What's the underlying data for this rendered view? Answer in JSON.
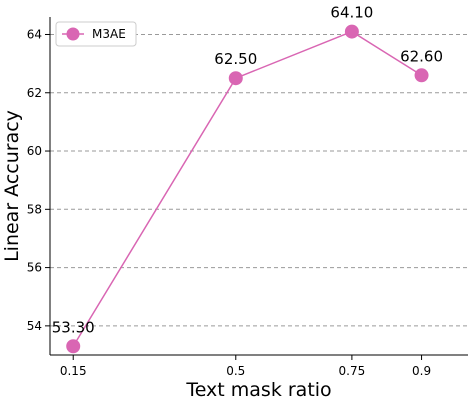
{
  "chart_data": {
    "type": "line",
    "x_tick_labels": [
      "0.15",
      "0.5",
      "0.75",
      "0.9"
    ],
    "x": [
      0.15,
      0.5,
      0.75,
      0.9
    ],
    "xlim": [
      0.1,
      1.0
    ],
    "ylim": [
      53.0,
      64.6
    ],
    "y_ticks": [
      54,
      56,
      58,
      60,
      62,
      64
    ],
    "y_tick_labels": [
      "54",
      "56",
      "58",
      "60",
      "62",
      "64"
    ],
    "xlabel": "Text mask ratio",
    "ylabel": "Linear Accuracy",
    "grid": "horizontal dashed",
    "legend_position": "top-left",
    "series": [
      {
        "name": "M3AE",
        "color": "#d966b3",
        "values": [
          53.3,
          62.5,
          64.1,
          62.6
        ],
        "data_labels": [
          "53.30",
          "62.50",
          "64.10",
          "62.60"
        ]
      }
    ]
  }
}
